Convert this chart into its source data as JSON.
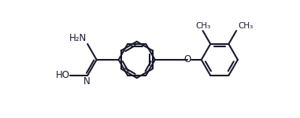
{
  "bg_color": "#ffffff",
  "line_color": "#1a1a2e",
  "line_width": 1.5,
  "text_color": "#1a1a2e",
  "font_size": 8.5,
  "figsize": [
    3.81,
    1.5
  ],
  "dpi": 100,
  "xlim": [
    0,
    10
  ],
  "ylim": [
    0,
    3.95
  ]
}
